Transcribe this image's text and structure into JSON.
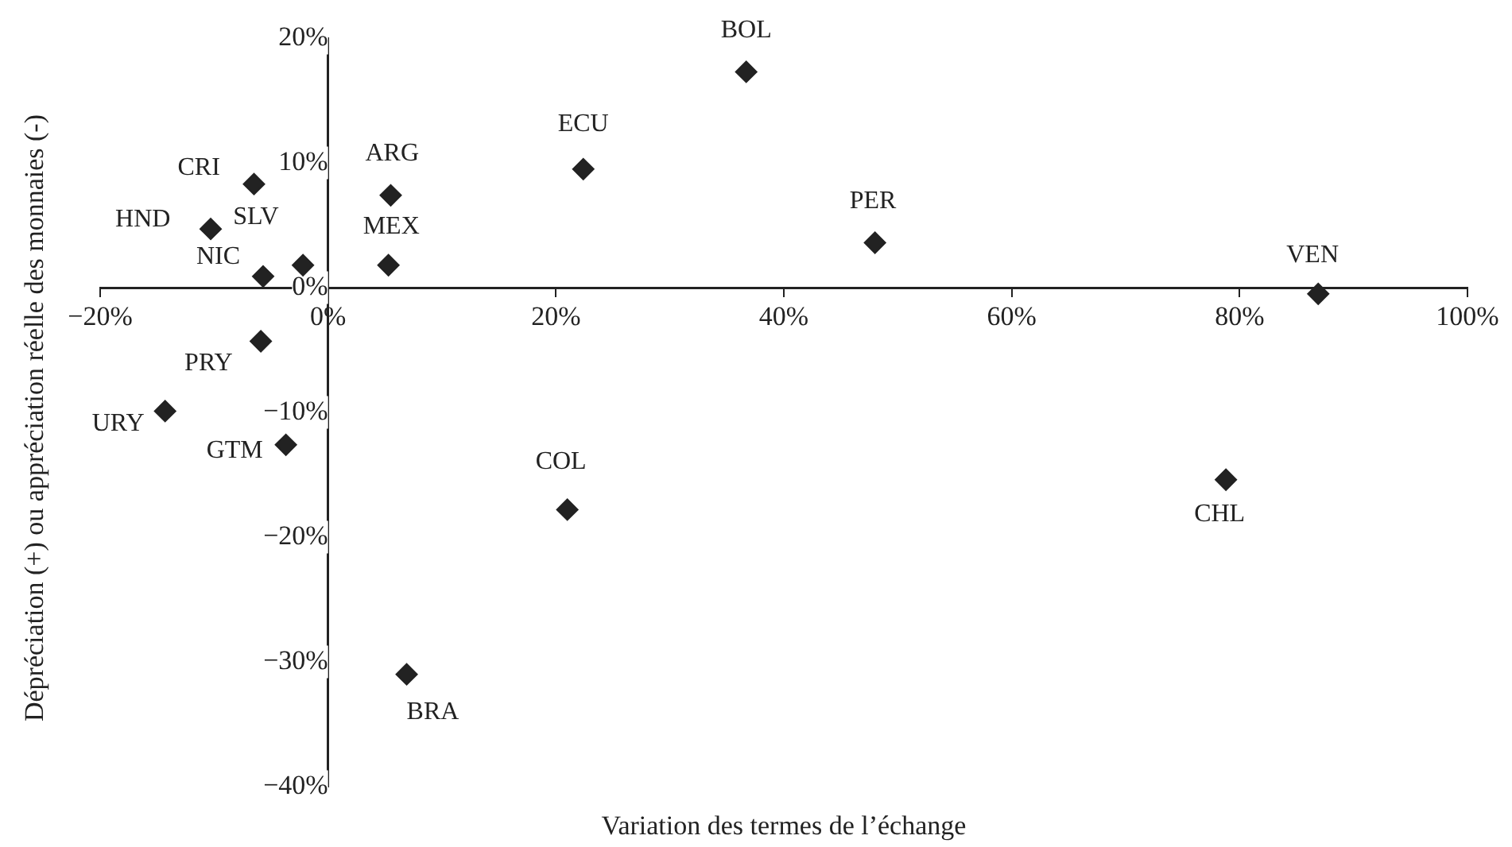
{
  "chart_data": {
    "type": "scatter",
    "xlabel": "Variation des termes de l’échange",
    "ylabel": "Dépréciation (+) ou appréciation réelle des monnaies (-)",
    "series": [
      {
        "color": "#222222",
        "x": [
          -6.5,
          -10.3,
          -2.2,
          -5.7,
          5.5,
          5.3,
          22.4,
          -5.9,
          -14.3,
          -3.7,
          36.7,
          48.0,
          86.9,
          21.0,
          6.9,
          78.8
        ],
        "values": [
          8.3,
          4.7,
          1.8,
          0.9,
          7.4,
          1.8,
          9.5,
          -4.3,
          -9.9,
          -12.6,
          17.3,
          3.6,
          -0.5,
          -17.8,
          -31.0,
          -15.4
        ]
      }
    ],
    "annotations": [
      {
        "text": "CRI",
        "x": -6.5,
        "y": 8.3
      },
      {
        "text": "HND",
        "x": -10.3,
        "y": 4.7
      },
      {
        "text": "SLV",
        "x": -2.2,
        "y": 1.8
      },
      {
        "text": "NIC",
        "x": -5.7,
        "y": 0.9
      },
      {
        "text": "ARG",
        "x": 5.5,
        "y": 7.4
      },
      {
        "text": "MEX",
        "x": 5.3,
        "y": 1.8
      },
      {
        "text": "ECU",
        "x": 22.4,
        "y": 9.5
      },
      {
        "text": "PRY",
        "x": -5.9,
        "y": -4.3
      },
      {
        "text": "URY",
        "x": -14.3,
        "y": -9.9
      },
      {
        "text": "GTM",
        "x": -3.7,
        "y": -12.6
      },
      {
        "text": "BOL",
        "x": 36.7,
        "y": 17.3
      },
      {
        "text": "PER",
        "x": 48.0,
        "y": 3.6
      },
      {
        "text": "VEN",
        "x": 86.9,
        "y": -0.5
      },
      {
        "text": "COL",
        "x": 21.0,
        "y": -17.8
      },
      {
        "text": "BRA",
        "x": 6.9,
        "y": -31.0
      },
      {
        "text": "CHL",
        "x": 78.8,
        "y": -15.4
      }
    ],
    "xlim": [
      -20,
      100
    ],
    "xticks": [
      {
        "value": -20,
        "label": "−20%"
      },
      {
        "value": 0,
        "label": "0%"
      },
      {
        "value": 20,
        "label": "20%"
      },
      {
        "value": 40,
        "label": "40%"
      },
      {
        "value": 60,
        "label": "60%"
      },
      {
        "value": 80,
        "label": "80%"
      },
      {
        "value": 100,
        "label": "100%"
      }
    ],
    "ylim": [
      -40,
      20
    ],
    "yticks": [
      {
        "value": -40,
        "label": "−40%"
      },
      {
        "value": -30,
        "label": "−30%"
      },
      {
        "value": -20,
        "label": "−20%"
      },
      {
        "value": -10,
        "label": "−10%"
      },
      {
        "value": 0,
        "label": "0%"
      },
      {
        "value": 10,
        "label": "10%"
      },
      {
        "value": 20,
        "label": "20%"
      }
    ],
    "grid": false,
    "legend": false,
    "marker": "diamond"
  }
}
